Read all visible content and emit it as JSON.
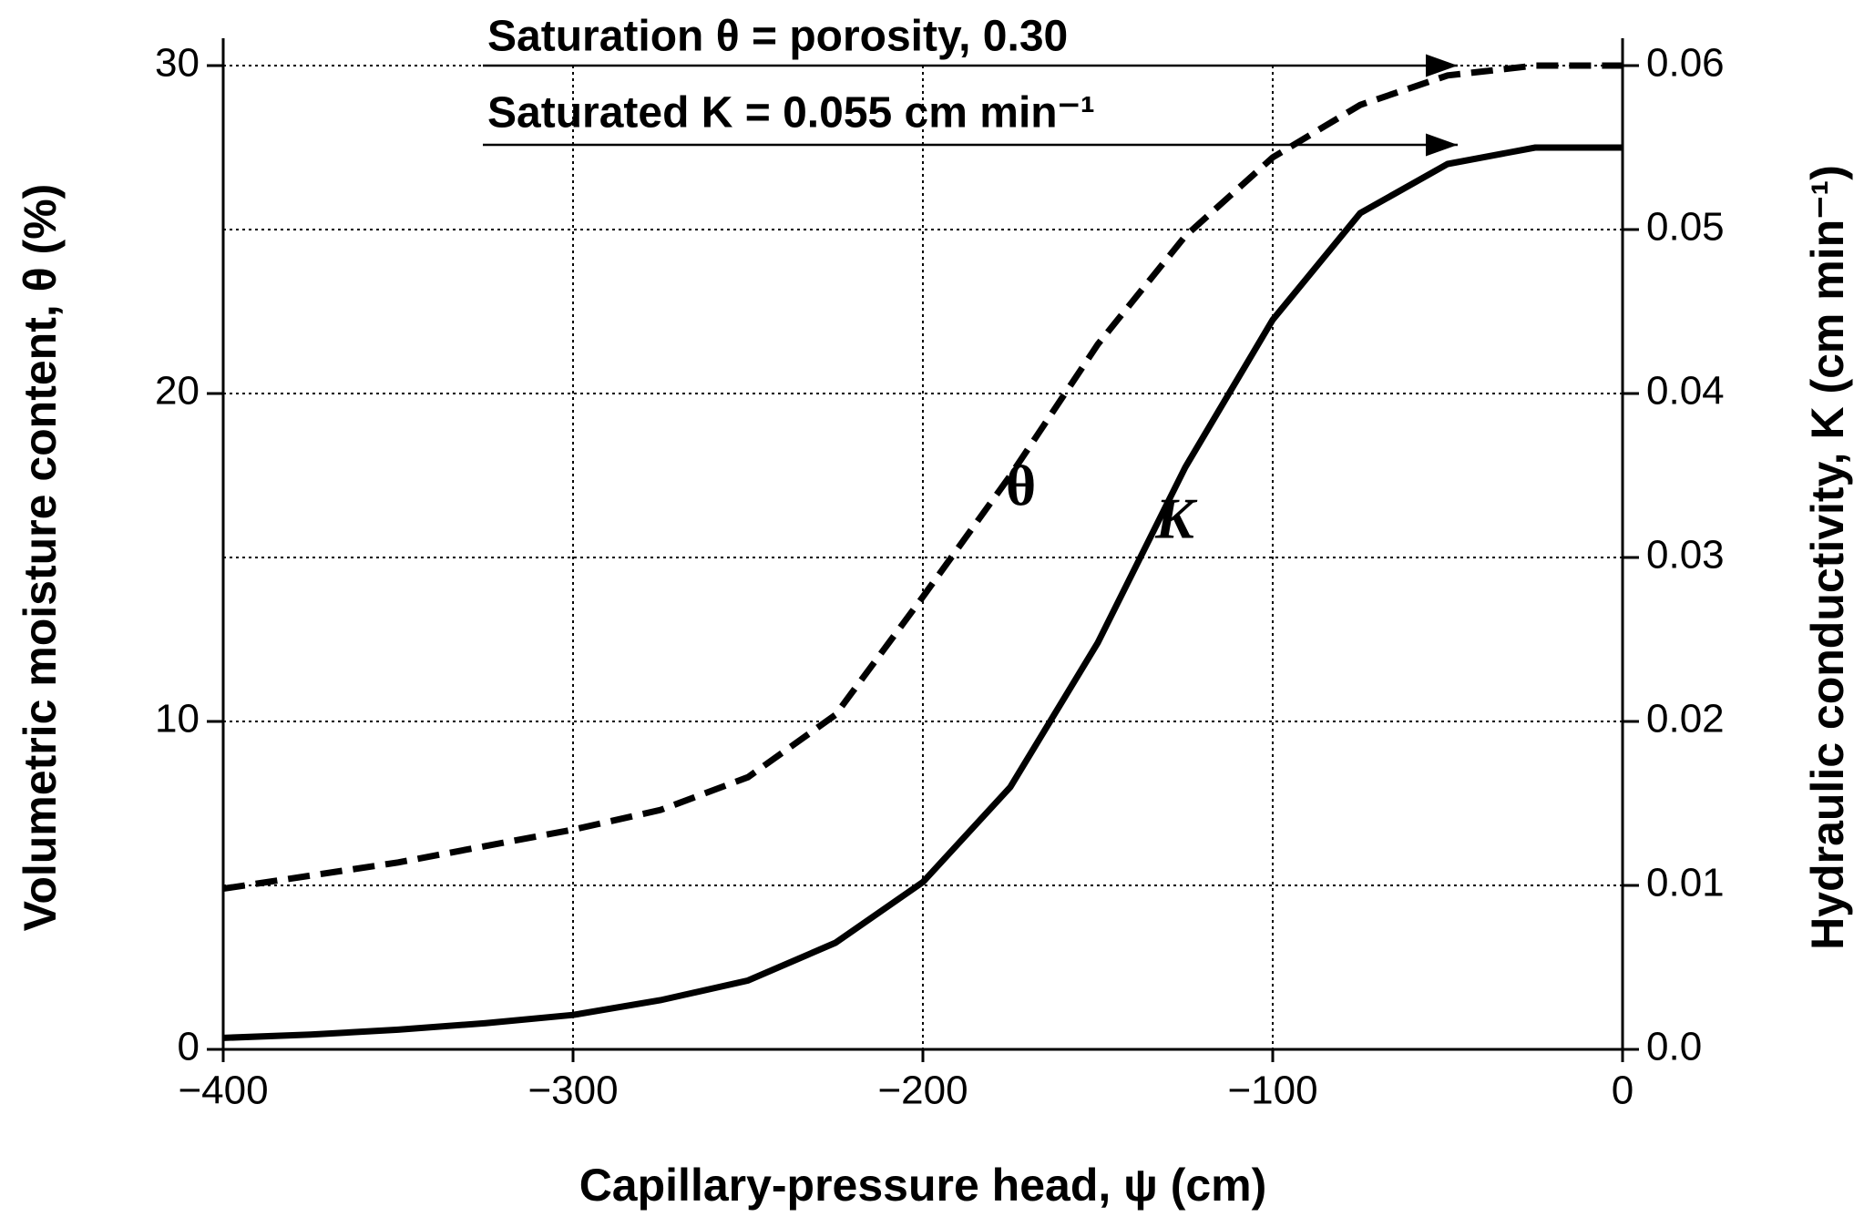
{
  "chart_data": {
    "type": "line",
    "xlabel": "Capillary-pressure head, ψ (cm)",
    "ylabel": "Volumetric moisture content, θ (%)",
    "y2label": "Hydraulic conductivity, K (cm min⁻¹)",
    "x": [
      -400,
      -375,
      -350,
      -325,
      -300,
      -275,
      -250,
      -225,
      -200,
      -175,
      -150,
      -125,
      -100,
      -75,
      -50,
      -25,
      0
    ],
    "series": [
      {
        "name": "θ",
        "color": "#000000",
        "style": "dashed",
        "values": [
          4.9,
          5.3,
          5.7,
          6.2,
          6.7,
          7.3,
          8.3,
          10.2,
          13.8,
          17.5,
          21.5,
          24.8,
          27.2,
          28.8,
          29.7,
          30,
          30
        ]
      },
      {
        "name": "K",
        "color": "#000000",
        "style": "solid",
        "axis": "y2",
        "values": [
          0.0007,
          0.0009,
          0.0012,
          0.0016,
          0.0021,
          0.003,
          0.0042,
          0.0065,
          0.0102,
          0.016,
          0.0248,
          0.0355,
          0.0445,
          0.051,
          0.054,
          0.055,
          0.055
        ]
      }
    ],
    "annotations": [
      "Saturation θ = porosity, 0.30",
      "Saturated K = 0.055 cm min⁻¹"
    ],
    "xlim": [
      -400,
      0
    ],
    "xticks": [
      {
        "value": -400,
        "label": "−400"
      },
      {
        "value": -300,
        "label": "−300"
      },
      {
        "value": -200,
        "label": "−200"
      },
      {
        "value": -100,
        "label": "−100"
      },
      0
    ],
    "ylim": [
      0,
      30
    ],
    "yticks": [
      0,
      10,
      20,
      30
    ],
    "y2lim": [
      0,
      0.06
    ],
    "y2ticks": [
      {
        "value": 0,
        "label": "0.0"
      },
      0.01,
      0.02,
      0.03,
      0.04,
      0.05,
      0.06
    ],
    "grid": true
  }
}
